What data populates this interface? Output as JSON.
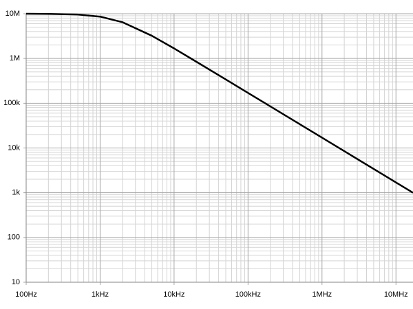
{
  "chart_data": {
    "type": "line",
    "x": [
      100,
      200,
      500,
      1000,
      2000,
      5000,
      10000,
      20000,
      50000,
      100000,
      1000000,
      10000000,
      17000000
    ],
    "series": [
      {
        "color": "#000000",
        "values": [
          9980000,
          9930000,
          9590000,
          8620000,
          6480000,
          3220000,
          1680000,
          847000,
          340000,
          170000,
          17000,
          1700,
          1000
        ]
      }
    ],
    "xlim": [
      100,
      17000000
    ],
    "ylim": [
      10,
      10000000
    ],
    "xticks": [
      {
        "value": 100,
        "label": "100Hz"
      },
      {
        "value": 1000,
        "label": "1kHz"
      },
      {
        "value": 10000,
        "label": "10kHz"
      },
      {
        "value": 100000,
        "label": "100kHz"
      },
      {
        "value": 1000000,
        "label": "1MHz"
      },
      {
        "value": 10000000,
        "label": "10MHz"
      }
    ],
    "yticks": [
      10,
      100,
      {
        "value": 1000,
        "label": "1k"
      },
      {
        "value": 10000,
        "label": "10k"
      },
      {
        "value": 100000,
        "label": "100k"
      },
      {
        "value": 1000000,
        "label": "1M"
      },
      {
        "value": 10000000,
        "label": "10M"
      }
    ],
    "xscale": "log",
    "yscale": "log",
    "grid": true,
    "minor_grid": true
  }
}
